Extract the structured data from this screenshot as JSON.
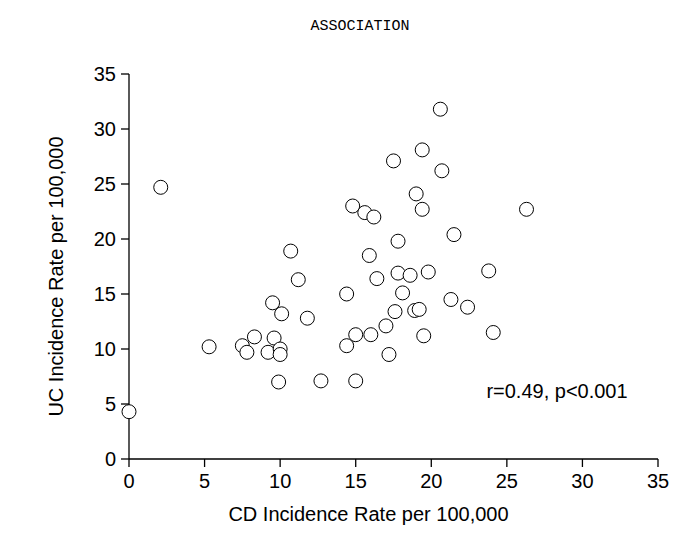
{
  "chart_data": {
    "type": "scatter",
    "title": "ASSOCIATION",
    "x_label": "CD Incidence Rate per 100,000",
    "y_label": "UC Incidence Rate per 100,000",
    "annotation": "r=0.49, p<0.001",
    "x": [
      0,
      2.1,
      5.3,
      7.5,
      7.8,
      8.3,
      9.2,
      9.5,
      9.6,
      9.9,
      10.0,
      10.0,
      10.1,
      10.7,
      11.2,
      11.8,
      12.7,
      14.4,
      14.4,
      14.8,
      15.0,
      15.0,
      15.6,
      15.9,
      16.0,
      16.2,
      16.4,
      17.0,
      17.2,
      17.5,
      17.6,
      17.8,
      17.8,
      18.1,
      18.6,
      18.9,
      19.0,
      19.2,
      19.4,
      19.4,
      19.5,
      19.8,
      20.6,
      20.7,
      21.3,
      21.5,
      22.4,
      23.8,
      24.1,
      26.3
    ],
    "values": [
      4.3,
      24.7,
      10.2,
      10.3,
      9.7,
      11.1,
      9.7,
      14.2,
      11.0,
      7.0,
      10.0,
      9.5,
      13.2,
      18.9,
      16.3,
      12.8,
      7.1,
      15.0,
      10.3,
      23.0,
      11.3,
      7.1,
      22.4,
      18.5,
      11.3,
      22.0,
      16.4,
      12.1,
      9.5,
      27.1,
      13.4,
      16.9,
      19.8,
      15.1,
      16.7,
      13.5,
      24.1,
      13.6,
      28.1,
      22.7,
      11.2,
      17.0,
      31.8,
      26.2,
      14.5,
      20.4,
      13.8,
      17.1,
      11.5,
      22.7
    ],
    "xlim": [
      0,
      35
    ],
    "xticks": [
      0,
      5,
      10,
      15,
      20,
      25,
      30,
      35
    ],
    "ylim": [
      0,
      35
    ],
    "yticks": [
      0,
      5,
      10,
      15,
      20,
      25,
      30,
      35
    ],
    "grid": false,
    "marker": "circle-open",
    "color": "#000000"
  }
}
